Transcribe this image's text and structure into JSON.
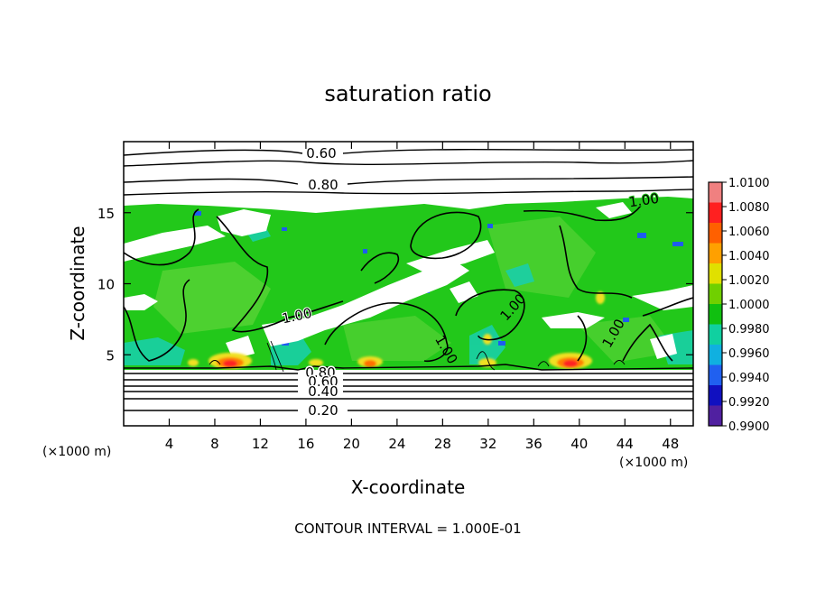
{
  "chart_data": {
    "type": "heatmap",
    "title": "saturation ratio",
    "xlabel": "X-coordinate",
    "ylabel": "Z-coordinate",
    "x_unit": "(×1000 m)",
    "xlim": [
      0,
      50
    ],
    "ylim": [
      0,
      20
    ],
    "x_ticks": [
      4,
      8,
      12,
      16,
      20,
      24,
      28,
      32,
      36,
      40,
      44,
      48
    ],
    "y_ticks": [
      5,
      10,
      15
    ],
    "footer": "CONTOUR INTERVAL = 1.000E-01",
    "colorbar": {
      "ticks": [
        "1.0100",
        "1.0080",
        "1.0060",
        "1.0040",
        "1.0020",
        "1.0000",
        "0.9980",
        "0.9960",
        "0.9940",
        "0.9920",
        "0.9900"
      ],
      "colors": [
        "#f08080",
        "#ff2020",
        "#ff6000",
        "#ffa000",
        "#e0e000",
        "#70d000",
        "#10c010",
        "#10d0a0",
        "#10b0e0",
        "#2060f0",
        "#1010c0",
        "#5020a0"
      ]
    },
    "contour_labels": [
      "0.60",
      "0.80",
      "1.00",
      "1.00",
      "1.00",
      "1.00",
      "1.00",
      "0.80",
      "0.60",
      "0.40",
      "0.20"
    ]
  }
}
